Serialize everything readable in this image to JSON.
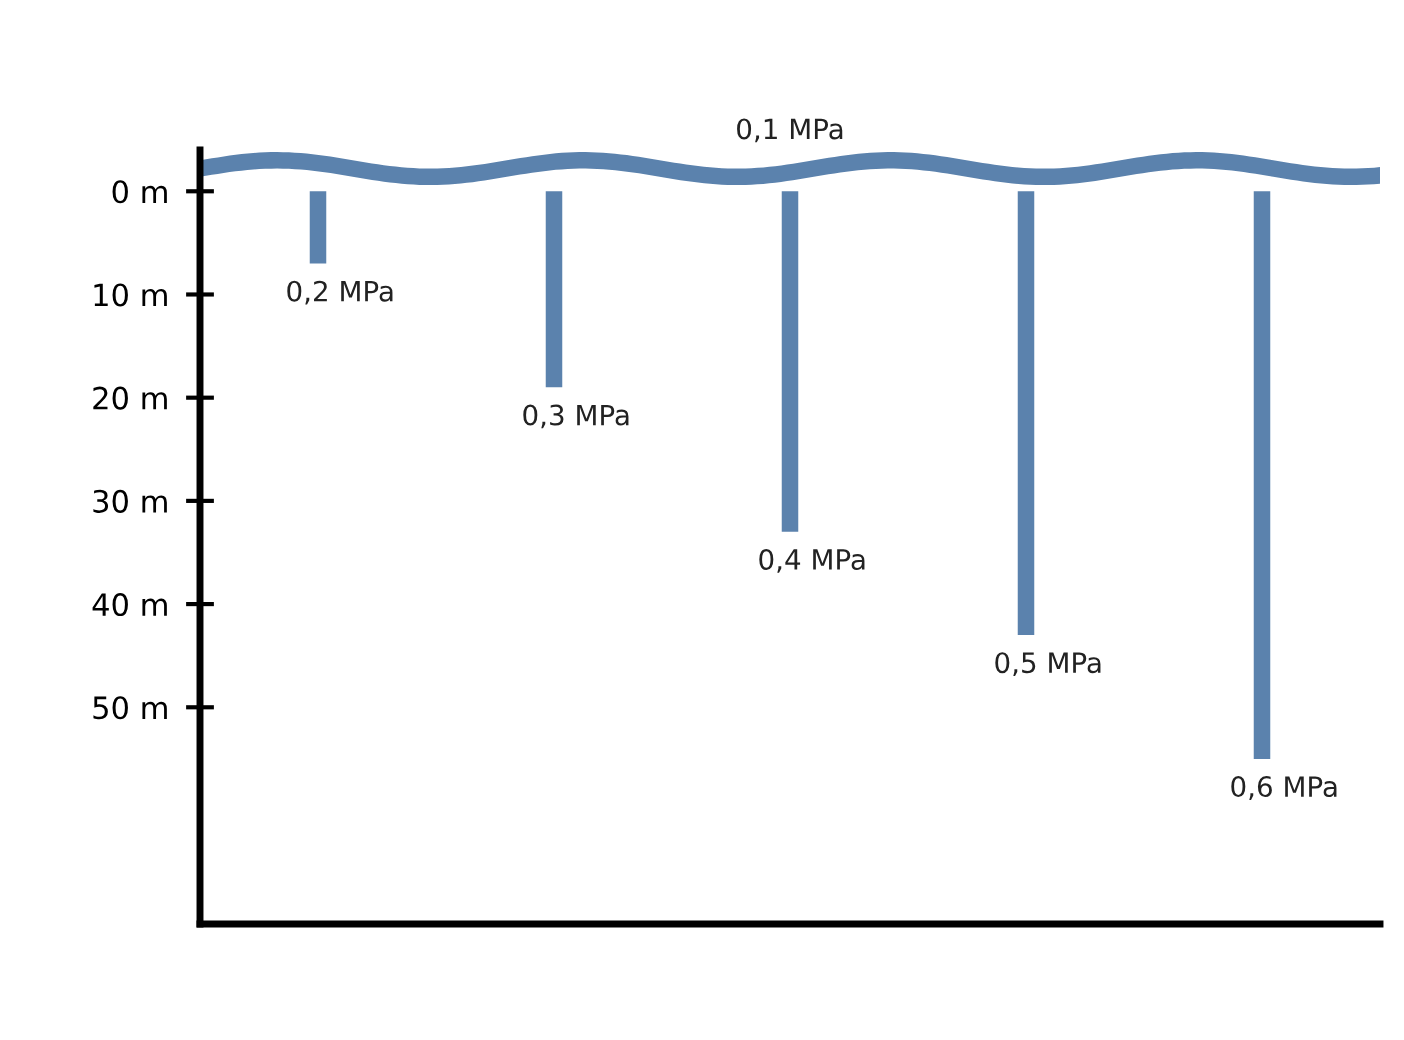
{
  "chart_data": {
    "type": "bar",
    "categories": [
      null,
      null,
      null,
      null,
      null
    ],
    "values": [
      7,
      19,
      33,
      43,
      55
    ],
    "color": "#5b82ad",
    "ylim": [
      71,
      -4
    ],
    "yticks": [
      {
        "value": 0,
        "label": "0 m"
      },
      {
        "value": 10,
        "label": "10 m"
      },
      {
        "value": 20,
        "label": "20 m"
      },
      {
        "value": 30,
        "label": "30 m"
      },
      {
        "value": 40,
        "label": "40 m"
      },
      {
        "value": 50,
        "label": "50 m"
      }
    ],
    "annotations": [
      "0,1 MPa",
      "0,2 MPa",
      "0,3 MPa",
      "0,4 MPa",
      "0,5 MPa",
      "0,6 MPa"
    ],
    "tick_labels": "y",
    "grid": false
  }
}
